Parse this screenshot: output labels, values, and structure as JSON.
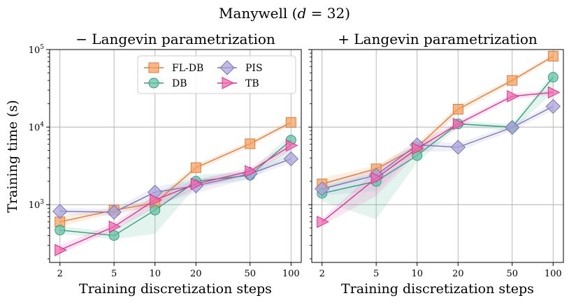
{
  "figure": {
    "title": "Manywell (d = 32)",
    "title_main": "Manywell (",
    "title_var": "d",
    "title_rest": " = 32)"
  },
  "chart_data": [
    {
      "type": "line",
      "title": "− Langevin parametrization",
      "xlabel": "Training discretization steps",
      "ylabel": "Training time (s)",
      "xscale": "log",
      "yscale": "log",
      "categories": [
        2,
        5,
        10,
        20,
        50,
        100
      ],
      "x_tick_labels": [
        "2",
        "5",
        "10",
        "20",
        "50",
        "100"
      ],
      "ylim": [
        180,
        100000
      ],
      "y_ticks": [
        {
          "base": "10",
          "exp": "3"
        },
        {
          "base": "10",
          "exp": "4"
        },
        {
          "base": "10",
          "exp": "5"
        }
      ],
      "grid": true,
      "legend": "top-right",
      "series": [
        {
          "name": "FL-DB",
          "marker": "square",
          "color": "#f4a261",
          "stroke": "#e07b39",
          "values": [
            600,
            850,
            1050,
            3000,
            6100,
            11500
          ],
          "band_low": [
            520,
            780,
            950,
            2700,
            5600,
            10500
          ],
          "band_high": [
            700,
            930,
            1150,
            3300,
            6600,
            12500
          ]
        },
        {
          "name": "DB",
          "marker": "circle",
          "color": "#66c2a5",
          "stroke": "#3a9a7e",
          "values": [
            470,
            400,
            850,
            2000,
            2400,
            6800
          ],
          "band_low": [
            420,
            360,
            420,
            1700,
            2100,
            4500
          ],
          "band_high": [
            530,
            440,
            1400,
            2400,
            2700,
            8200
          ]
        },
        {
          "name": "PIS",
          "marker": "diamond",
          "color": "#a9a4d8",
          "stroke": "#7b74b8",
          "values": [
            820,
            800,
            1450,
            1750,
            2500,
            3900
          ],
          "band_low": [
            740,
            720,
            1000,
            1400,
            2200,
            3500
          ],
          "band_high": [
            900,
            880,
            1700,
            2100,
            2800,
            4300
          ]
        },
        {
          "name": "TB",
          "marker": "triangle-right",
          "color": "#f06bb0",
          "stroke": "#d9368f",
          "values": [
            260,
            520,
            1150,
            1850,
            2700,
            5800
          ],
          "band_low": [
            230,
            470,
            900,
            1600,
            2400,
            5000
          ],
          "band_high": [
            300,
            580,
            1350,
            2100,
            3000,
            6500
          ]
        }
      ]
    },
    {
      "type": "line",
      "title": "+ Langevin parametrization",
      "xlabel": "Training discretization steps",
      "xscale": "log",
      "yscale": "log",
      "categories": [
        2,
        5,
        10,
        20,
        50,
        100
      ],
      "x_tick_labels": [
        "2",
        "5",
        "10",
        "20",
        "50",
        "100"
      ],
      "ylim": [
        180,
        100000
      ],
      "grid": true,
      "series": [
        {
          "name": "FL-DB",
          "marker": "square",
          "color": "#f4a261",
          "stroke": "#e07b39",
          "values": [
            1850,
            2900,
            5500,
            17000,
            40000,
            82000
          ],
          "band_low": [
            1500,
            2600,
            4500,
            15000,
            37000,
            76000
          ],
          "band_high": [
            2200,
            3200,
            6200,
            19000,
            43000,
            88000
          ]
        },
        {
          "name": "DB",
          "marker": "circle",
          "color": "#66c2a5",
          "stroke": "#3a9a7e",
          "values": [
            1400,
            2000,
            4300,
            11000,
            10000,
            44000
          ],
          "band_low": [
            1100,
            650,
            3500,
            10000,
            9000,
            28000
          ],
          "band_high": [
            1700,
            2600,
            5000,
            12000,
            11000,
            50000
          ]
        },
        {
          "name": "PIS",
          "marker": "diamond",
          "color": "#a9a4d8",
          "stroke": "#7b74b8",
          "values": [
            1600,
            2400,
            5900,
            5500,
            9900,
            18500
          ],
          "band_low": [
            1300,
            1500,
            4800,
            4900,
            9000,
            16500
          ],
          "band_high": [
            1900,
            3000,
            6800,
            6200,
            10800,
            20500
          ]
        },
        {
          "name": "TB",
          "marker": "triangle-right",
          "color": "#f06bb0",
          "stroke": "#d9368f",
          "values": [
            600,
            2200,
            5300,
            11000,
            25000,
            28000
          ],
          "band_low": [
            540,
            1300,
            4500,
            10000,
            23000,
            26000
          ],
          "band_high": [
            660,
            2800,
            6200,
            12000,
            27000,
            30000
          ]
        }
      ]
    }
  ]
}
